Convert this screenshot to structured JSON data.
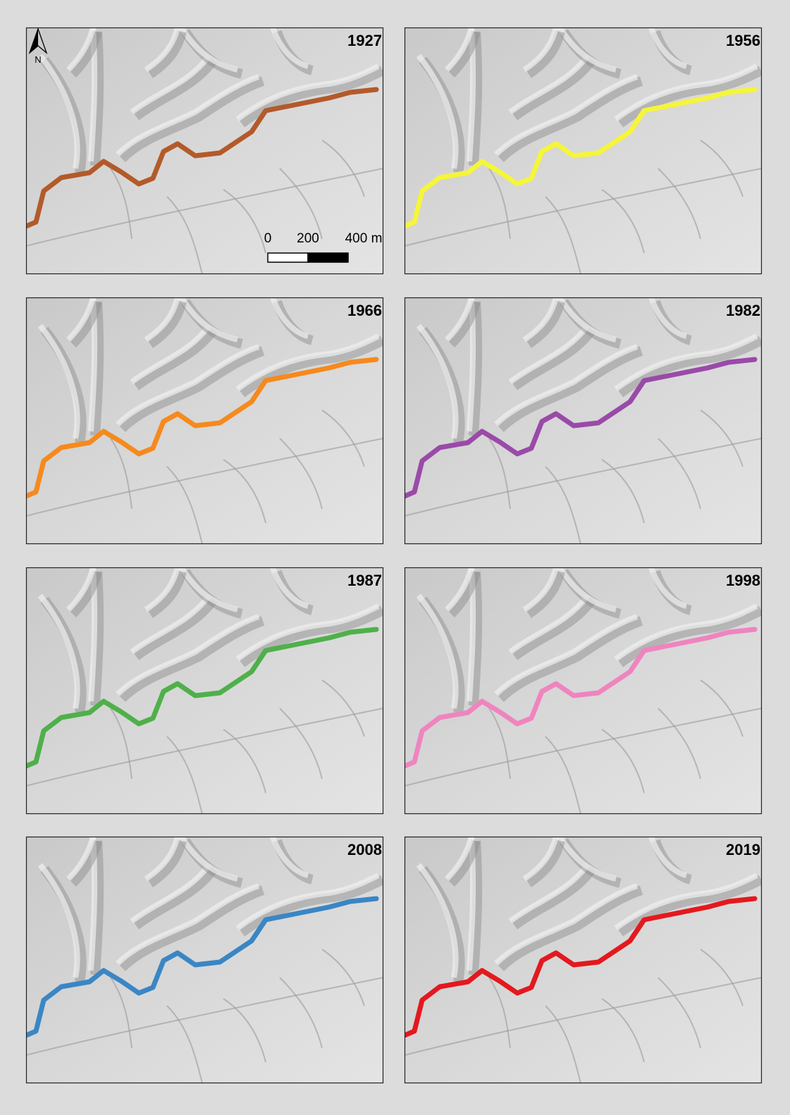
{
  "panels": [
    {
      "year": "1927",
      "color": "#b35a2a"
    },
    {
      "year": "1956",
      "color": "#f5f53a"
    },
    {
      "year": "1966",
      "color": "#f58a1e"
    },
    {
      "year": "1982",
      "color": "#9a4aa8"
    },
    {
      "year": "1987",
      "color": "#4fb04a"
    },
    {
      "year": "1998",
      "color": "#ef84bf"
    },
    {
      "year": "2008",
      "color": "#3a86c4"
    },
    {
      "year": "2019",
      "color": "#e3191e"
    }
  ],
  "north": "N",
  "scale_bar": {
    "labels": [
      "0",
      "200",
      "400 m"
    ]
  }
}
